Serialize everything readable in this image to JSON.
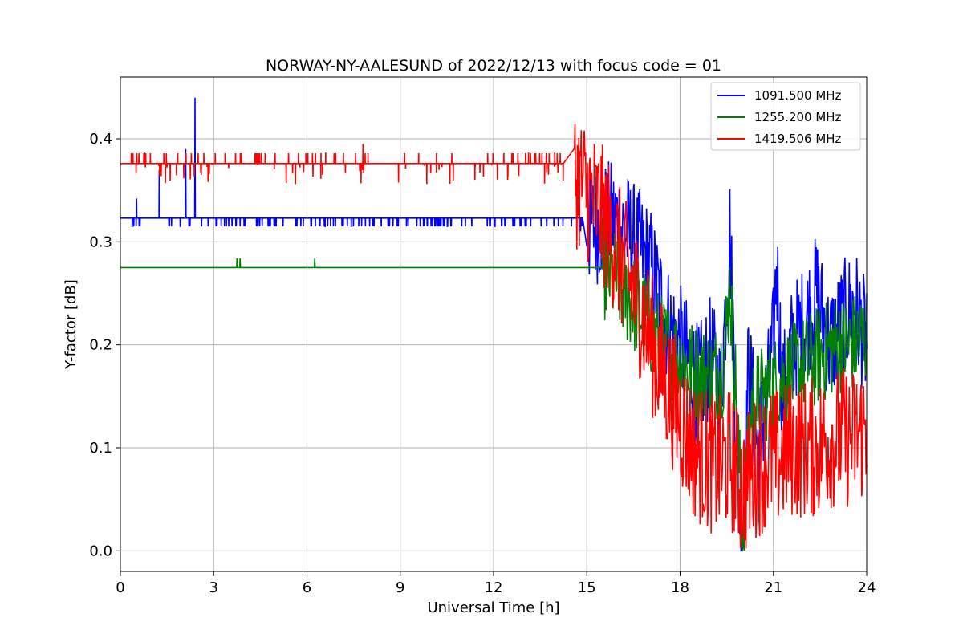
{
  "chart_data": {
    "type": "line",
    "title": "NORWAY-NY-AALESUND of 2022/12/13 with focus code = 01",
    "xlabel": "Universal Time [h]",
    "ylabel": "Y-factor [dB]",
    "xlim": [
      0,
      24
    ],
    "ylim": [
      -0.02,
      0.46
    ],
    "xticks": [
      0,
      3,
      6,
      9,
      12,
      15,
      18,
      21,
      24
    ],
    "yticks": [
      0.0,
      0.1,
      0.2,
      0.3,
      0.4
    ],
    "xtick_labels": [
      "0",
      "3",
      "6",
      "9",
      "12",
      "15",
      "18",
      "21",
      "24"
    ],
    "ytick_labels": [
      "0.0",
      "0.1",
      "0.2",
      "0.3",
      "0.4"
    ],
    "grid": true,
    "legend_position": "top-right",
    "series": [
      {
        "name": "1091.500 MHz",
        "color": "#0000ff",
        "baseline": 0.323,
        "x": [
          0,
          0.5,
          0.52,
          1.0,
          1.25,
          1.3,
          2.1,
          2.15,
          2.4,
          2.45,
          2.6,
          5.0,
          9.6,
          11.0,
          12.0,
          13.5,
          14.8,
          15.5,
          16.0,
          16.5,
          17.0,
          17.3,
          17.6,
          18.0,
          18.3,
          18.6,
          19.0,
          19.3,
          19.6,
          19.7,
          19.8,
          20.0,
          20.2,
          20.5,
          20.8,
          21.0,
          21.1,
          21.3,
          21.6,
          22.0,
          22.4,
          22.8,
          23.2,
          23.6,
          24.0
        ],
        "y": [
          0.323,
          0.323,
          0.342,
          0.323,
          0.37,
          0.323,
          0.39,
          0.323,
          0.44,
          0.323,
          0.323,
          0.323,
          0.323,
          0.323,
          0.323,
          0.323,
          0.31,
          0.32,
          0.32,
          0.3,
          0.28,
          0.25,
          0.22,
          0.2,
          0.18,
          0.16,
          0.19,
          0.15,
          0.31,
          0.22,
          0.12,
          0.0,
          0.18,
          0.1,
          0.15,
          0.2,
          0.28,
          0.15,
          0.2,
          0.22,
          0.25,
          0.2,
          0.22,
          0.24,
          0.2
        ]
      },
      {
        "name": "1255.200 MHz",
        "color": "#008000",
        "baseline": 0.275,
        "x": [
          0,
          3.7,
          3.75,
          3.85,
          6.2,
          6.25,
          15.5,
          16.0,
          16.5,
          17.0,
          17.4,
          17.8,
          18.2,
          18.6,
          19.0,
          19.4,
          19.6,
          19.8,
          20.0,
          20.3,
          20.6,
          21.0,
          21.5,
          22.0,
          22.5,
          23.0,
          23.5,
          24.0
        ],
        "y": [
          0.275,
          0.275,
          0.284,
          0.284,
          0.275,
          0.284,
          0.275,
          0.26,
          0.24,
          0.22,
          0.2,
          0.19,
          0.18,
          0.17,
          0.17,
          0.18,
          0.26,
          0.15,
          0.02,
          0.14,
          0.15,
          0.16,
          0.17,
          0.18,
          0.19,
          0.2,
          0.2,
          0.21
        ]
      },
      {
        "name": "1419.506 MHz",
        "color": "#ff0000",
        "baseline": 0.376,
        "x": [
          0,
          2.0,
          4.0,
          6.0,
          7.8,
          9.0,
          11.0,
          12.0,
          13.0,
          14.0,
          14.8,
          15.2,
          15.6,
          16.0,
          16.4,
          16.8,
          17.2,
          17.6,
          18.0,
          18.4,
          18.8,
          19.2,
          19.6,
          20.0,
          20.4,
          20.8,
          21.2,
          21.6,
          22.0,
          22.4,
          22.8,
          23.2,
          23.6,
          24.0
        ],
        "y": [
          0.376,
          0.376,
          0.376,
          0.376,
          0.395,
          0.376,
          0.376,
          0.376,
          0.376,
          0.376,
          0.36,
          0.34,
          0.32,
          0.29,
          0.26,
          0.23,
          0.19,
          0.16,
          0.13,
          0.1,
          0.09,
          0.08,
          0.09,
          0.06,
          0.08,
          0.09,
          0.09,
          0.1,
          0.1,
          0.1,
          0.11,
          0.11,
          0.11,
          0.12
        ]
      }
    ]
  }
}
